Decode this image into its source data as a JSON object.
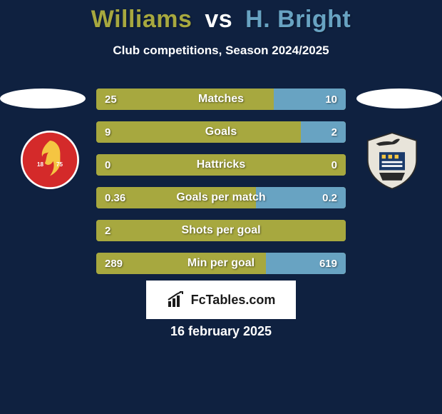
{
  "theme": {
    "background": "#0f2140",
    "title_color1": "#a7a83f",
    "title_vs_color": "#ffffff",
    "title_color2": "#68a3c2",
    "subtitle_color": "#ffffff",
    "date_color": "#ffffff",
    "bar_color_left": "#a7a83f",
    "bar_color_right": "#68a3c2",
    "bar_track": "#a7a83f",
    "player1_crest_bg": "#d42a2a",
    "player2_crest_bg": "#e8e4da"
  },
  "header": {
    "player1": "Williams",
    "vs": "vs",
    "player2": "H. Bright",
    "subtitle": "Club competitions, Season 2024/2025"
  },
  "stats": [
    {
      "label": "Matches",
      "left_val": "25",
      "right_val": "10",
      "left_pct": 71,
      "right_pct": 29
    },
    {
      "label": "Goals",
      "left_val": "9",
      "right_val": "2",
      "left_pct": 82,
      "right_pct": 18
    },
    {
      "label": "Hattricks",
      "left_val": "0",
      "right_val": "0",
      "left_pct": 100,
      "right_pct": 0
    },
    {
      "label": "Goals per match",
      "left_val": "0.36",
      "right_val": "0.2",
      "left_pct": 64,
      "right_pct": 36
    },
    {
      "label": "Shots per goal",
      "left_val": "2",
      "right_val": "",
      "left_pct": 100,
      "right_pct": 0
    },
    {
      "label": "Min per goal",
      "left_val": "289",
      "right_val": "619",
      "left_pct": 68,
      "right_pct": 32
    }
  ],
  "footer": {
    "brand": "FcTables.com",
    "date": "16 february 2025"
  }
}
